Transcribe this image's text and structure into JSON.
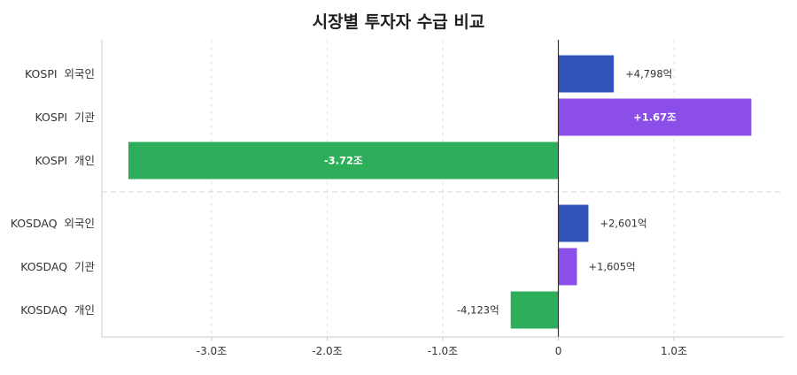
{
  "chart_data": {
    "type": "bar",
    "orientation": "horizontal",
    "title": "시장별 투자자 수급 비교",
    "xlabel": "",
    "ylabel": "",
    "unit": "조",
    "xlim": [
      -3.95,
      1.95
    ],
    "grid": "vertical-dashed",
    "xticks": [
      {
        "value": -3.0,
        "label": "-3.0조"
      },
      {
        "value": -2.0,
        "label": "-2.0조"
      },
      {
        "value": -1.0,
        "label": "-1.0조"
      },
      {
        "value": 0,
        "label": "0"
      },
      {
        "value": 1.0,
        "label": "1.0조"
      }
    ],
    "groups": [
      {
        "market": "KOSPI",
        "bars": [
          {
            "category": "KOSPI  외국인",
            "value": 0.4798,
            "label": "+4,798억",
            "color": "#3355bb",
            "label_inside": false
          },
          {
            "category": "KOSPI  기관",
            "value": 1.67,
            "label": "+1.67조",
            "color": "#8c4ee8",
            "label_inside": true
          },
          {
            "category": "KOSPI  개인",
            "value": -3.72,
            "label": "-3.72조",
            "color": "#2ead5a",
            "label_inside": true
          }
        ]
      },
      {
        "market": "KOSDAQ",
        "bars": [
          {
            "category": "KOSDAQ  외국인",
            "value": 0.2601,
            "label": "+2,601억",
            "color": "#3355bb",
            "label_inside": false
          },
          {
            "category": "KOSDAQ  기관",
            "value": 0.1605,
            "label": "+1,605억",
            "color": "#8c4ee8",
            "label_inside": false
          },
          {
            "category": "KOSDAQ  개인",
            "value": -0.4123,
            "label": "-4,123억",
            "color": "#2ead5a",
            "label_inside": false
          }
        ]
      }
    ]
  }
}
